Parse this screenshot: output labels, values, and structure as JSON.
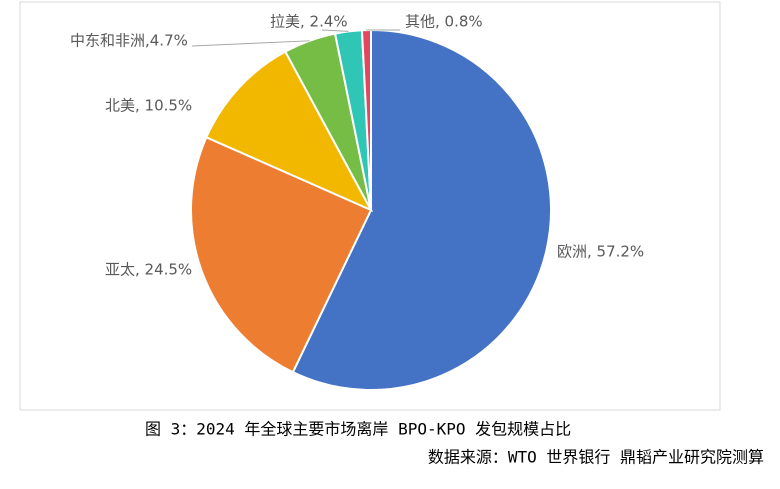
{
  "chart_data": {
    "type": "pie",
    "values": [
      57.2,
      24.5,
      10.5,
      4.7,
      2.4,
      0.8
    ],
    "value_labels": [
      "欧洲, 57.2%",
      "亚太, 24.5%",
      "北美, 10.5%",
      "中东和非洲,4.7%",
      "拉美, 2.4%",
      "其他, 0.8%"
    ],
    "colors": [
      "#4472c4",
      "#ed7d31",
      "#f2b800",
      "#76bd45",
      "#2fc6b5",
      "#e3475e"
    ],
    "caption": "图 3：2024 年全球主要市场离岸 BPO-KPO 发包规模占比",
    "source": "数据来源：WTO 世界银行 鼎韬产业研究院测算"
  }
}
